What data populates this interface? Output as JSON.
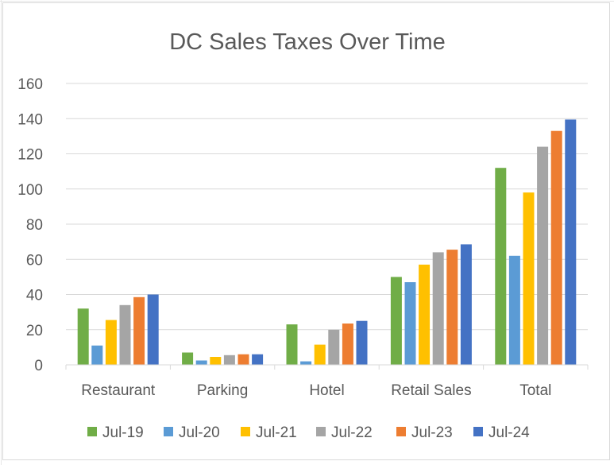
{
  "chart_data": {
    "type": "bar",
    "title": "DC Sales Taxes Over Time",
    "xlabel": "",
    "ylabel": "",
    "categories": [
      "Restaurant",
      "Parking",
      "Hotel",
      "Retail Sales",
      "Total"
    ],
    "ylim": [
      0,
      160
    ],
    "yticks": [
      "0",
      "20",
      "40",
      "60",
      "80",
      "100",
      "120",
      "140",
      "160"
    ],
    "grid": true,
    "legend_position": "bottom",
    "series": [
      {
        "name": "Jul-19",
        "color": "#70AD47",
        "values": [
          32,
          7,
          23,
          50,
          112
        ]
      },
      {
        "name": "Jul-20",
        "color": "#5B9BD5",
        "values": [
          11,
          2.5,
          2,
          47,
          62
        ]
      },
      {
        "name": "Jul-21",
        "color": "#FFC000",
        "values": [
          25.5,
          4.5,
          11.5,
          57,
          98
        ]
      },
      {
        "name": "Jul-22",
        "color": "#A5A5A5",
        "values": [
          34,
          5.5,
          20,
          64,
          124
        ]
      },
      {
        "name": "Jul-23",
        "color": "#ED7D31",
        "values": [
          38.5,
          6,
          23.5,
          65.5,
          133
        ]
      },
      {
        "name": "Jul-24",
        "color": "#4472C4",
        "values": [
          40,
          6,
          25,
          68.5,
          139.5
        ]
      }
    ]
  }
}
